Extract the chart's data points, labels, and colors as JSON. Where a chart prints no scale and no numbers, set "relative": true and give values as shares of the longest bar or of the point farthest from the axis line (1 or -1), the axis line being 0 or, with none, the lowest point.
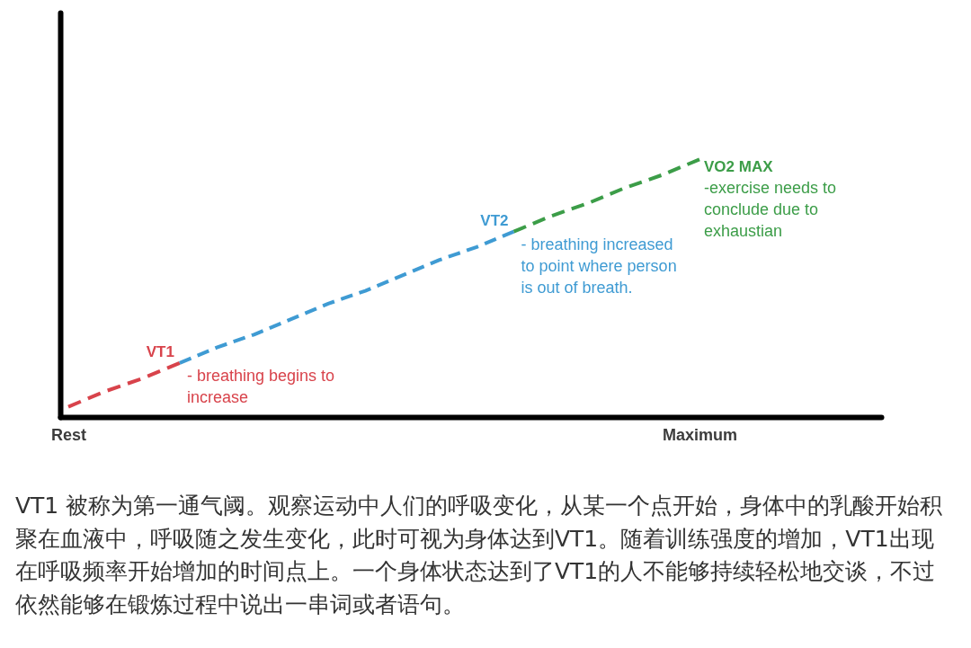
{
  "chart_data": {
    "type": "line",
    "relative": true,
    "line_style": "dashed",
    "grid": false,
    "legend": false,
    "tick_labels": "x",
    "categories": [
      "Rest",
      null,
      null,
      null,
      null,
      null,
      null,
      null,
      null,
      null,
      null,
      null,
      null,
      null,
      null,
      null,
      null,
      "Maximum"
    ],
    "series": [
      {
        "name": "VT1",
        "color": "#d8434b",
        "values": [
          0.04,
          0.1,
          0.15,
          0.21,
          null,
          null,
          null,
          null,
          null,
          null,
          null,
          null,
          null,
          null,
          null,
          null,
          null,
          null
        ]
      },
      {
        "name": "VT2",
        "color": "#3f9bd3",
        "values": [
          null,
          null,
          null,
          0.21,
          0.27,
          0.32,
          0.38,
          0.44,
          0.49,
          0.55,
          0.61,
          0.66,
          0.72,
          null,
          null,
          null,
          null,
          null
        ]
      },
      {
        "name": "VO2 MAX",
        "color": "#3c9d48",
        "values": [
          null,
          null,
          null,
          null,
          null,
          null,
          null,
          null,
          null,
          null,
          null,
          null,
          0.72,
          0.78,
          0.83,
          0.89,
          0.94,
          1
        ]
      }
    ],
    "annotations": [
      "- breathing begins to increase",
      "- breathing increased to point where person is out of breath.",
      "-exercise needs to conclude due to exhaustian",
      "VT1 被称为第一通气阈。观察运动中人们的呼吸变化，从某一个点开始，身体中的乳酸开始积聚在血液中，呼吸随之发生变化，此时可视为身体达到VT1。随着训练强度的增加，VT1出现在呼吸频率开始增加的时间点上。一个身体状态达到了VT1的人不能够持续轻松地交谈，不过依然能够在锻炼过程中说出一串词或者语句。"
    ]
  }
}
